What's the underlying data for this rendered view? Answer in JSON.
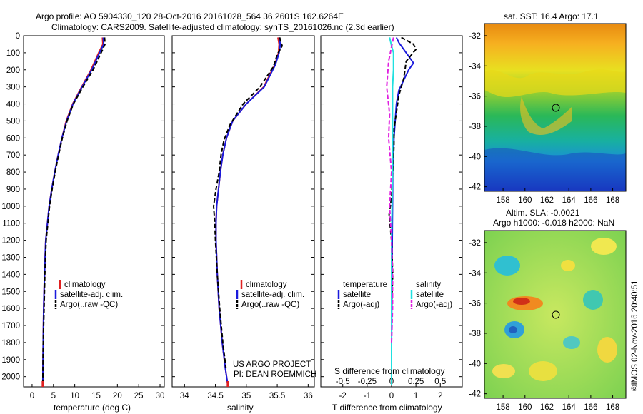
{
  "header": {
    "line1": "Argo profile: AO 5904330_120 28-Oct-2016 20161028_564 36.2601S 162.6264E",
    "line2": "Climatology: CARS2009. Satellite-adjusted climatology: synTS_20161026.nc (2.3d earlier)"
  },
  "depth_axis": {
    "ticks": [
      0,
      100,
      200,
      300,
      400,
      500,
      600,
      700,
      800,
      900,
      1000,
      1100,
      1200,
      1300,
      1400,
      1500,
      1600,
      1700,
      1800,
      1900,
      2000
    ]
  },
  "temp_panel": {
    "xlabel": "temperature (deg C)",
    "xticks": [
      "0",
      "5",
      "10",
      "15",
      "20",
      "25",
      "30"
    ],
    "legend": [
      "climatology",
      "satellite-adj. clim.",
      "Argo(..raw -QC)"
    ]
  },
  "sal_panel": {
    "xlabel": "salinity",
    "xticks": [
      "34",
      "34.5",
      "35",
      "35.5",
      "36"
    ],
    "legend": [
      "climatology",
      "satellite-adj. clim.",
      "Argo(..raw -QC)"
    ],
    "credit1": "US ARGO PROJECT",
    "credit2": "PI: DEAN ROEMMICH"
  },
  "diff_panel": {
    "xlabel_bottom": "T difference from climatology",
    "xlabel_top": "S difference from climatology",
    "xticks_bottom": [
      "-2",
      "-1",
      "0",
      "1",
      "2"
    ],
    "xticks_top": [
      "-0.5",
      "-0.25",
      "0",
      "0.25",
      "0.5"
    ],
    "legend_t_title": "temperature",
    "legend_s_title": "salinity",
    "legend_t": [
      "satellite",
      "Argo(-adj)"
    ],
    "legend_s": [
      "satellite",
      "Argo(-adj)"
    ]
  },
  "sst_map": {
    "title": "sat. SST: 16.4  Argo: 17.1",
    "xticks": [
      "158",
      "160",
      "162",
      "164",
      "166",
      "168"
    ],
    "yticks": [
      "-32",
      "-34",
      "-36",
      "-38",
      "-40",
      "-42"
    ]
  },
  "sla_map": {
    "title1": "Altim. SLA: -0.0021",
    "title2": "Argo h1000: -0.018 h2000: NaN",
    "xticks": [
      "158",
      "160",
      "162",
      "164",
      "166",
      "168"
    ],
    "yticks": [
      "-32",
      "-34",
      "-36",
      "-38",
      "-40",
      "-42"
    ]
  },
  "stamp": "©IMOS 02-Nov-2016 20:40:51",
  "colors": {
    "climatology": "#e02020",
    "satellite_adj": "#1a1adc",
    "argo": "#000000",
    "salinity_satellite": "#20e0e0",
    "salinity_argo": "#e020e0"
  },
  "chart_data": [
    {
      "type": "line",
      "panel": "temperature",
      "xlabel": "temperature (deg C)",
      "ylabel": "",
      "xlim": [
        -2,
        31
      ],
      "ylim": [
        2060,
        0
      ],
      "series": [
        {
          "name": "climatology",
          "x": [
            16.5,
            16.6,
            15.6,
            13.8,
            11.6,
            9.5,
            8.0,
            7.0,
            6.1,
            5.3,
            4.6,
            4.0,
            3.6,
            3.2,
            2.9,
            2.7,
            2.6,
            2.5
          ],
          "y": [
            10,
            50,
            100,
            200,
            300,
            400,
            500,
            600,
            700,
            800,
            900,
            1000,
            1100,
            1200,
            1400,
            1600,
            1800,
            2050
          ]
        },
        {
          "name": "satellite-adj. clim.",
          "x": [
            16.7,
            16.8,
            15.8,
            14.0,
            11.7,
            9.6,
            8.1,
            7.0,
            6.1,
            5.3,
            4.6,
            4.0,
            3.6,
            3.2,
            2.9,
            2.7,
            2.6,
            2.5
          ],
          "y": [
            10,
            50,
            100,
            200,
            300,
            400,
            500,
            600,
            700,
            800,
            900,
            1000,
            1100,
            1200,
            1400,
            1600,
            1800,
            2050
          ]
        },
        {
          "name": "Argo(..raw -QC)",
          "x": [
            17.0,
            17.1,
            16.2,
            14.3,
            11.9,
            9.7,
            8.2,
            7.1,
            6.2,
            5.4,
            4.7,
            4.1,
            3.7,
            3.3,
            3.0,
            2.8,
            2.6,
            2.5
          ],
          "y": [
            10,
            50,
            100,
            200,
            300,
            400,
            500,
            600,
            700,
            800,
            900,
            1000,
            1100,
            1200,
            1400,
            1600,
            1800,
            2050
          ]
        }
      ]
    },
    {
      "type": "line",
      "panel": "salinity",
      "xlabel": "salinity",
      "ylabel": "",
      "xlim": [
        33.8,
        36.1
      ],
      "ylim": [
        2060,
        0
      ],
      "series": [
        {
          "name": "climatology",
          "x": [
            35.51,
            35.53,
            35.52,
            35.46,
            35.28,
            35.0,
            34.78,
            34.68,
            34.62,
            34.58,
            34.55,
            34.52,
            34.51,
            34.51,
            34.53,
            34.56,
            34.61,
            34.66,
            34.7
          ],
          "y": [
            10,
            50,
            100,
            170,
            300,
            400,
            500,
            600,
            700,
            800,
            900,
            1000,
            1100,
            1200,
            1400,
            1600,
            1800,
            1950,
            2050
          ]
        },
        {
          "name": "satellite-adj. clim.",
          "x": [
            35.53,
            35.55,
            35.53,
            35.47,
            35.29,
            35.0,
            34.78,
            34.68,
            34.62,
            34.58,
            34.55,
            34.52,
            34.51,
            34.51,
            34.53,
            34.56,
            34.61,
            34.66,
            34.7
          ],
          "y": [
            10,
            50,
            100,
            170,
            300,
            400,
            500,
            600,
            700,
            800,
            900,
            1000,
            1100,
            1200,
            1400,
            1600,
            1800,
            1950,
            2050
          ]
        },
        {
          "name": "Argo(..raw -QC)",
          "x": [
            35.54,
            35.58,
            35.5,
            35.44,
            35.22,
            34.95,
            34.74,
            34.64,
            34.59,
            34.56,
            34.51,
            34.47,
            34.49,
            34.5,
            34.53,
            34.57,
            34.62,
            34.67
          ],
          "y": [
            10,
            60,
            110,
            180,
            300,
            400,
            520,
            610,
            700,
            800,
            900,
            1000,
            1100,
            1200,
            1400,
            1600,
            1800,
            1950
          ]
        }
      ]
    },
    {
      "type": "line",
      "panel": "difference",
      "xlabel": "T difference from climatology",
      "xlabel_top": "S difference from climatology",
      "ylabel": "",
      "xlim": [
        -2.9,
        2.9
      ],
      "ylim": [
        2060,
        0
      ],
      "series": [
        {
          "name": "satellite",
          "group": "temperature",
          "x": [
            0.2,
            0.3,
            0.6,
            0.9,
            0.7,
            0.5,
            0.3,
            0.2,
            0.15,
            0.1,
            0.08,
            0.05,
            0.04,
            0.03,
            0.02,
            0.01,
            0.0,
            0.0
          ],
          "y": [
            10,
            40,
            100,
            160,
            200,
            260,
            320,
            400,
            500,
            600,
            700,
            800,
            1000,
            1200,
            1400,
            1600,
            1800,
            2050
          ]
        },
        {
          "name": "Argo(-adj)",
          "group": "temperature",
          "x": [
            0.4,
            0.9,
            1.0,
            0.6,
            0.5,
            0.3,
            0.2,
            0.1,
            0.1,
            0.05,
            0.0,
            -0.1,
            0.0,
            0.05,
            0.0,
            0.0
          ],
          "y": [
            10,
            50,
            80,
            150,
            250,
            350,
            450,
            550,
            650,
            800,
            950,
            1050,
            1200,
            1400,
            1600,
            1800
          ]
        },
        {
          "name": "satellite",
          "group": "salinity",
          "x": [
            -0.02,
            0.0,
            0.02,
            0.02,
            0.01,
            0.01,
            0.01,
            0.0,
            0.0,
            0.0
          ],
          "y": [
            10,
            60,
            100,
            200,
            300,
            500,
            800,
            1200,
            1600,
            2050
          ]
        },
        {
          "name": "Argo(-adj)",
          "group": "salinity",
          "x": [
            0.02,
            -0.03,
            -0.05,
            -0.02,
            -0.03,
            0.0,
            -0.02,
            0.0,
            0.01,
            0.01,
            0.0
          ],
          "y": [
            10,
            150,
            300,
            460,
            600,
            800,
            1000,
            1200,
            1400,
            1600,
            1800
          ]
        }
      ]
    }
  ]
}
